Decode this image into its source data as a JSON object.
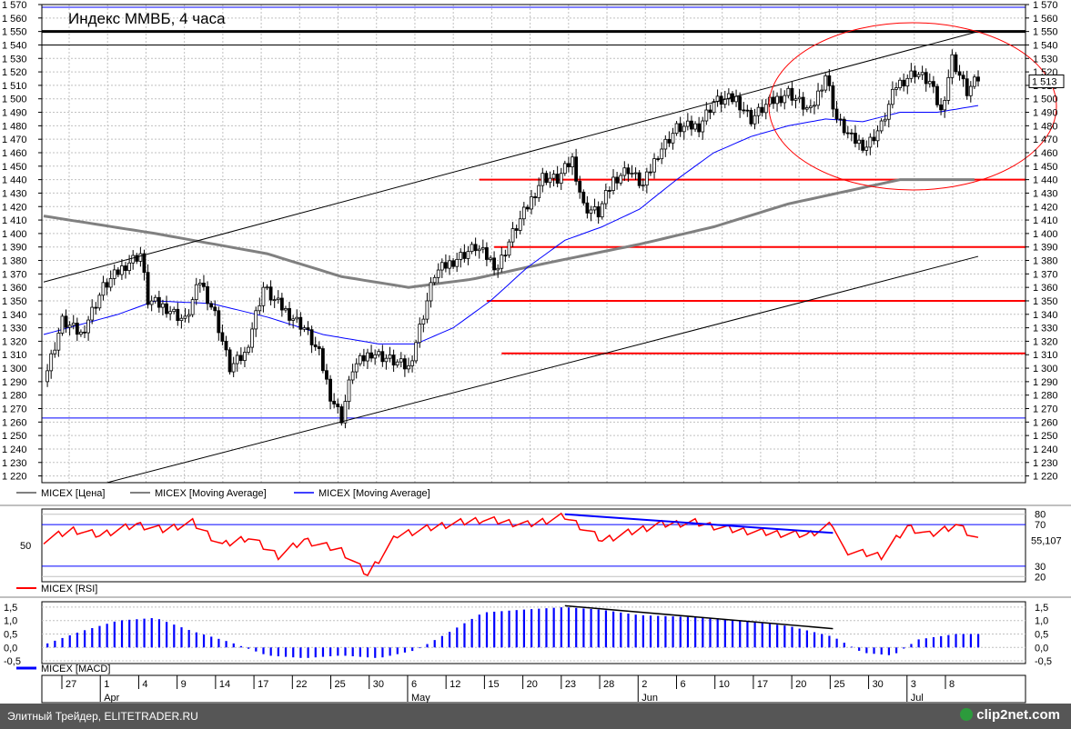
{
  "title": "Индекс ММВБ, 4 часа",
  "colors": {
    "price": "#000000",
    "ma_long": "#808080",
    "ma_short": "#0000ff",
    "levels": "#ff0000",
    "rsi": "#ff0000",
    "macd": "#0000ff"
  },
  "legend": {
    "main": [
      {
        "label": "MICEX [Цена]",
        "color": "#808080"
      },
      {
        "label": "MICEX [Moving Average]",
        "color": "#808080"
      },
      {
        "label": "MICEX [Moving Average]",
        "color": "#0000ff"
      }
    ],
    "rsi": "MICEX [RSI]",
    "macd": "MICEX [MACD]"
  },
  "footer": {
    "text": "Элитный Трейдер, ELITETRADER.RU",
    "logo": "clip2net.com"
  },
  "chart_data": [
    {
      "type": "candlestick",
      "title": "Индекс ММВБ, 4 часа",
      "ylim": [
        1215,
        1570
      ],
      "yticks": [
        "1 220",
        "1 230",
        "1 240",
        "1 250",
        "1 260",
        "1 270",
        "1 280",
        "1 290",
        "1 300",
        "1 310",
        "1 320",
        "1 330",
        "1 340",
        "1 350",
        "1 360",
        "1 370",
        "1 380",
        "1 390",
        "1 400",
        "1 410",
        "1 420",
        "1 430",
        "1 440",
        "1 450",
        "1 460",
        "1 470",
        "1 480",
        "1 490",
        "1 500",
        "1 510",
        "1 520",
        "1 530",
        "1 540",
        "1 550",
        "1 560",
        "1 570"
      ],
      "last_value_label": "1 513",
      "x_day_labels": [
        "27",
        "1",
        "4",
        "9",
        "14",
        "17",
        "22",
        "25",
        "30",
        "6",
        "12",
        "15",
        "20",
        "23",
        "28",
        "2",
        "6",
        "10",
        "17",
        "20",
        "25",
        "30",
        "3",
        "8"
      ],
      "x_month_labels": [
        "Apr",
        "May",
        "Jun",
        "Jul"
      ],
      "price_path": [
        [
          0,
          1290
        ],
        [
          5,
          1335
        ],
        [
          10,
          1325
        ],
        [
          16,
          1360
        ],
        [
          22,
          1377
        ],
        [
          26,
          1385
        ],
        [
          28,
          1350
        ],
        [
          33,
          1345
        ],
        [
          38,
          1335
        ],
        [
          42,
          1365
        ],
        [
          46,
          1340
        ],
        [
          50,
          1300
        ],
        [
          54,
          1310
        ],
        [
          59,
          1360
        ],
        [
          62,
          1350
        ],
        [
          66,
          1340
        ],
        [
          70,
          1330
        ],
        [
          74,
          1310
        ],
        [
          77,
          1280
        ],
        [
          80,
          1263
        ],
        [
          83,
          1300
        ],
        [
          88,
          1312
        ],
        [
          94,
          1305
        ],
        [
          98,
          1300
        ],
        [
          102,
          1340
        ],
        [
          105,
          1370
        ],
        [
          110,
          1380
        ],
        [
          116,
          1390
        ],
        [
          122,
          1375
        ],
        [
          126,
          1400
        ],
        [
          130,
          1420
        ],
        [
          134,
          1442
        ],
        [
          138,
          1440
        ],
        [
          142,
          1455
        ],
        [
          145,
          1420
        ],
        [
          149,
          1415
        ],
        [
          153,
          1440
        ],
        [
          157,
          1448
        ],
        [
          161,
          1435
        ],
        [
          165,
          1460
        ],
        [
          170,
          1478
        ],
        [
          176,
          1480
        ],
        [
          180,
          1498
        ],
        [
          186,
          1500
        ],
        [
          190,
          1485
        ],
        [
          194,
          1495
        ],
        [
          200,
          1505
        ],
        [
          206,
          1490
        ],
        [
          210,
          1518
        ],
        [
          213,
          1485
        ],
        [
          217,
          1470
        ],
        [
          221,
          1465
        ],
        [
          225,
          1480
        ],
        [
          229,
          1510
        ],
        [
          234,
          1520
        ],
        [
          238,
          1512
        ],
        [
          241,
          1490
        ],
        [
          244,
          1530
        ],
        [
          248,
          1505
        ],
        [
          251,
          1515
        ]
      ],
      "ma_long": [
        [
          0,
          1413
        ],
        [
          30,
          1400
        ],
        [
          60,
          1385
        ],
        [
          80,
          1368
        ],
        [
          98,
          1360
        ],
        [
          115,
          1366
        ],
        [
          135,
          1378
        ],
        [
          160,
          1392
        ],
        [
          180,
          1405
        ],
        [
          200,
          1422
        ],
        [
          230,
          1440
        ],
        [
          251,
          1440
        ]
      ],
      "ma_short": [
        [
          0,
          1325
        ],
        [
          20,
          1340
        ],
        [
          30,
          1350
        ],
        [
          45,
          1348
        ],
        [
          60,
          1338
        ],
        [
          75,
          1325
        ],
        [
          90,
          1318
        ],
        [
          100,
          1318
        ],
        [
          110,
          1330
        ],
        [
          120,
          1350
        ],
        [
          130,
          1375
        ],
        [
          140,
          1395
        ],
        [
          150,
          1405
        ],
        [
          160,
          1418
        ],
        [
          170,
          1440
        ],
        [
          180,
          1460
        ],
        [
          190,
          1472
        ],
        [
          200,
          1480
        ],
        [
          210,
          1485
        ],
        [
          220,
          1483
        ],
        [
          230,
          1490
        ],
        [
          240,
          1490
        ],
        [
          251,
          1495
        ]
      ],
      "horizontal_levels": [
        {
          "value": 1550,
          "from_x": 0,
          "color": "#000000"
        },
        {
          "value": 1540,
          "from_x": 0,
          "color": "#000000"
        },
        {
          "value": 1440,
          "from_x": 117,
          "color": "#ff0000"
        },
        {
          "value": 1390,
          "from_x": 121,
          "color": "#ff0000"
        },
        {
          "value": 1350,
          "from_x": 119,
          "color": "#ff0000"
        },
        {
          "value": 1311,
          "from_x": 123,
          "color": "#ff0000"
        }
      ],
      "trendlines": [
        {
          "from": [
            0,
            1364
          ],
          "to": [
            251,
            1550
          ]
        },
        {
          "from": [
            17,
            1215
          ],
          "to": [
            251,
            1383
          ]
        }
      ]
    },
    {
      "type": "line",
      "title": "MICEX [RSI]",
      "ylim": [
        15,
        85
      ],
      "levels": [
        80,
        70,
        30,
        20
      ],
      "mid_label": "50",
      "last_value_label": "55,107",
      "series": [
        {
          "name": "MICEX [RSI]",
          "values": [
            [
              0,
              55
            ],
            [
              8,
              65
            ],
            [
              15,
              60
            ],
            [
              25,
              70
            ],
            [
              32,
              65
            ],
            [
              40,
              72
            ],
            [
              48,
              50
            ],
            [
              55,
              58
            ],
            [
              63,
              40
            ],
            [
              70,
              55
            ],
            [
              80,
              45
            ],
            [
              87,
              22
            ],
            [
              95,
              60
            ],
            [
              108,
              70
            ],
            [
              118,
              75
            ],
            [
              130,
              70
            ],
            [
              140,
              78
            ],
            [
              150,
              55
            ],
            [
              165,
              70
            ],
            [
              175,
              72
            ],
            [
              185,
              65
            ],
            [
              195,
              62
            ],
            [
              205,
              60
            ],
            [
              212,
              70
            ],
            [
              215,
              45
            ],
            [
              225,
              40
            ],
            [
              232,
              68
            ],
            [
              238,
              60
            ],
            [
              245,
              70
            ],
            [
              251,
              55
            ]
          ]
        }
      ],
      "divergence_line": {
        "from": [
          140,
          80
        ],
        "to": [
          212,
          62
        ]
      }
    },
    {
      "type": "bar",
      "title": "MICEX [MACD]",
      "ylim": [
        -0.6,
        1.7
      ],
      "yticks": [
        "1,5",
        "1,0",
        "0,5",
        "0,0",
        "-0,5"
      ],
      "series": [
        {
          "name": "MICEX [MACD]",
          "values": [
            [
              0,
              0.1
            ],
            [
              10,
              0.6
            ],
            [
              20,
              1.0
            ],
            [
              30,
              1.1
            ],
            [
              40,
              0.6
            ],
            [
              50,
              0.2
            ],
            [
              60,
              -0.3
            ],
            [
              70,
              -0.4
            ],
            [
              80,
              -0.3
            ],
            [
              90,
              -0.4
            ],
            [
              100,
              -0.1
            ],
            [
              108,
              0.5
            ],
            [
              118,
              1.3
            ],
            [
              128,
              1.4
            ],
            [
              140,
              1.5
            ],
            [
              150,
              1.4
            ],
            [
              160,
              1.2
            ],
            [
              180,
              1.1
            ],
            [
              200,
              0.8
            ],
            [
              212,
              0.4
            ],
            [
              220,
              -0.2
            ],
            [
              228,
              -0.3
            ],
            [
              235,
              0.3
            ],
            [
              245,
              0.5
            ],
            [
              251,
              0.5
            ]
          ]
        }
      ],
      "divergence_line": {
        "from": [
          140,
          1.55
        ],
        "to": [
          212,
          0.7
        ]
      }
    }
  ]
}
